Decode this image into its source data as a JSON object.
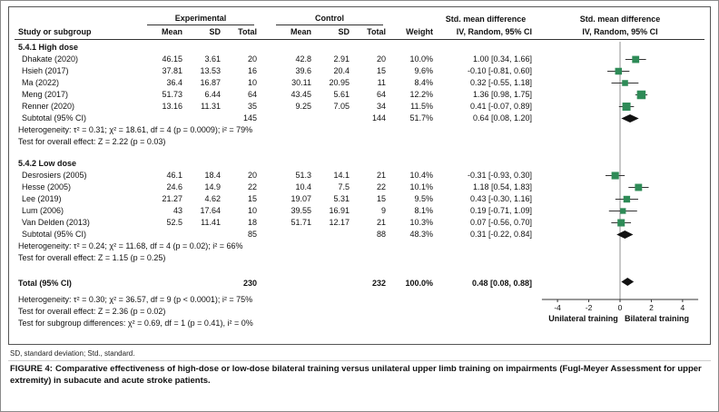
{
  "figure": {
    "footnote": "SD, standard deviation; Std., standard.",
    "caption_label": "FIGURE 4:",
    "caption_text": "Comparative effectiveness of high-dose or low-dose bilateral training versus unilateral upper limb training on impairments (Fugl-Meyer Assessment for upper extremity) in subacute and acute stroke patients."
  },
  "chart_data": {
    "type": "forest",
    "effect_measure": "Std. mean difference",
    "labels": {
      "study": "Study or subgroup",
      "experimental": "Experimental",
      "control": "Control",
      "mean": "Mean",
      "sd": "SD",
      "total": "Total",
      "weight": "Weight",
      "smd": "Std. mean difference",
      "method": "IV, Random, 95% CI"
    },
    "axis": {
      "min": -5,
      "max": 5,
      "ticks": [
        -4,
        -2,
        0,
        2,
        4
      ],
      "left_label": "Unilateral training",
      "right_label": "Bilateral training"
    },
    "colors": {
      "square": "#2e8b57",
      "diamond": "#111111",
      "ci_line": "#333333",
      "zero_line": "#909090",
      "axis": "#333333"
    },
    "groups": [
      {
        "title": "5.4.1 High dose",
        "studies": [
          {
            "name": "Dhakate (2020)",
            "exp_mean": "46.15",
            "exp_sd": "3.61",
            "exp_total": "20",
            "ctrl_mean": "42.8",
            "ctrl_sd": "2.91",
            "ctrl_total": "20",
            "weight": "10.0%",
            "ci_text": "1.00 [0.34, 1.66]",
            "est": 1.0,
            "lo": 0.34,
            "hi": 1.66
          },
          {
            "name": "Hsieh (2017)",
            "exp_mean": "37.81",
            "exp_sd": "13.53",
            "exp_total": "16",
            "ctrl_mean": "39.6",
            "ctrl_sd": "20.4",
            "ctrl_total": "15",
            "weight": "9.6%",
            "ci_text": "-0.10 [-0.81, 0.60]",
            "est": -0.1,
            "lo": -0.81,
            "hi": 0.6
          },
          {
            "name": "Ma (2022)",
            "exp_mean": "36.4",
            "exp_sd": "16.87",
            "exp_total": "10",
            "ctrl_mean": "30.11",
            "ctrl_sd": "20.95",
            "ctrl_total": "11",
            "weight": "8.4%",
            "ci_text": "0.32 [-0.55, 1.18]",
            "est": 0.32,
            "lo": -0.55,
            "hi": 1.18
          },
          {
            "name": "Meng (2017)",
            "exp_mean": "51.73",
            "exp_sd": "6.44",
            "exp_total": "64",
            "ctrl_mean": "43.45",
            "ctrl_sd": "5.61",
            "ctrl_total": "64",
            "weight": "12.2%",
            "ci_text": "1.36 [0.98, 1.75]",
            "est": 1.36,
            "lo": 0.98,
            "hi": 1.75
          },
          {
            "name": "Renner (2020)",
            "exp_mean": "13.16",
            "exp_sd": "11.31",
            "exp_total": "35",
            "ctrl_mean": "9.25",
            "ctrl_sd": "7.05",
            "ctrl_total": "34",
            "weight": "11.5%",
            "ci_text": "0.41 [-0.07, 0.89]",
            "est": 0.41,
            "lo": -0.07,
            "hi": 0.89
          }
        ],
        "subtotal": {
          "label": "Subtotal (95% CI)",
          "exp_total": "145",
          "ctrl_total": "144",
          "weight": "51.7%",
          "ci_text": "0.64 [0.08, 1.20]",
          "est": 0.64,
          "lo": 0.08,
          "hi": 1.2
        },
        "heterogeneity": "Heterogeneity: τ² = 0.31; χ² = 18.61, df = 4 (p = 0.0009); i² = 79%",
        "overall_effect": "Test for overall effect: Z = 2.22 (p = 0.03)"
      },
      {
        "title": "5.4.2 Low dose",
        "studies": [
          {
            "name": "Desrosiers (2005)",
            "exp_mean": "46.1",
            "exp_sd": "18.4",
            "exp_total": "20",
            "ctrl_mean": "51.3",
            "ctrl_sd": "14.1",
            "ctrl_total": "21",
            "weight": "10.4%",
            "ci_text": "-0.31 [-0.93, 0.30]",
            "est": -0.31,
            "lo": -0.93,
            "hi": 0.3
          },
          {
            "name": "Hesse (2005)",
            "exp_mean": "24.6",
            "exp_sd": "14.9",
            "exp_total": "22",
            "ctrl_mean": "10.4",
            "ctrl_sd": "7.5",
            "ctrl_total": "22",
            "weight": "10.1%",
            "ci_text": "1.18 [0.54, 1.83]",
            "est": 1.18,
            "lo": 0.54,
            "hi": 1.83
          },
          {
            "name": "Lee (2019)",
            "exp_mean": "21.27",
            "exp_sd": "4.62",
            "exp_total": "15",
            "ctrl_mean": "19.07",
            "ctrl_sd": "5.31",
            "ctrl_total": "15",
            "weight": "9.5%",
            "ci_text": "0.43 [-0.30, 1.16]",
            "est": 0.43,
            "lo": -0.3,
            "hi": 1.16
          },
          {
            "name": "Lum (2006)",
            "exp_mean": "43",
            "exp_sd": "17.64",
            "exp_total": "10",
            "ctrl_mean": "39.55",
            "ctrl_sd": "16.91",
            "ctrl_total": "9",
            "weight": "8.1%",
            "ci_text": "0.19 [-0.71, 1.09]",
            "est": 0.19,
            "lo": -0.71,
            "hi": 1.09
          },
          {
            "name": "Van Delden (2013)",
            "exp_mean": "52.5",
            "exp_sd": "11.41",
            "exp_total": "18",
            "ctrl_mean": "51.71",
            "ctrl_sd": "12.17",
            "ctrl_total": "21",
            "weight": "10.3%",
            "ci_text": "0.07 [-0.56, 0.70]",
            "est": 0.07,
            "lo": -0.56,
            "hi": 0.7
          }
        ],
        "subtotal": {
          "label": "Subtotal (95% CI)",
          "exp_total": "85",
          "ctrl_total": "88",
          "weight": "48.3%",
          "ci_text": "0.31 [-0.22, 0.84]",
          "est": 0.31,
          "lo": -0.22,
          "hi": 0.84
        },
        "heterogeneity": "Heterogeneity: τ² = 0.24; χ² = 11.68, df = 4 (p = 0.02); i² = 66%",
        "overall_effect": "Test for overall effect: Z = 1.15 (p = 0.25)"
      }
    ],
    "total": {
      "label": "Total (95% CI)",
      "exp_total": "230",
      "ctrl_total": "232",
      "weight": "100.0%",
      "ci_text": "0.48 [0.08, 0.88]",
      "est": 0.48,
      "lo": 0.08,
      "hi": 0.88
    },
    "total_heterogeneity": "Heterogeneity: τ² = 0.30; χ² = 36.57, df = 9 (p < 0.0001); i² = 75%",
    "total_overall_effect": "Test for overall effect: Z = 2.36 (p = 0.02)",
    "subgroup_differences": "Test for subgroup differences: χ² = 0.69, df = 1 (p = 0.41), i² = 0%"
  }
}
